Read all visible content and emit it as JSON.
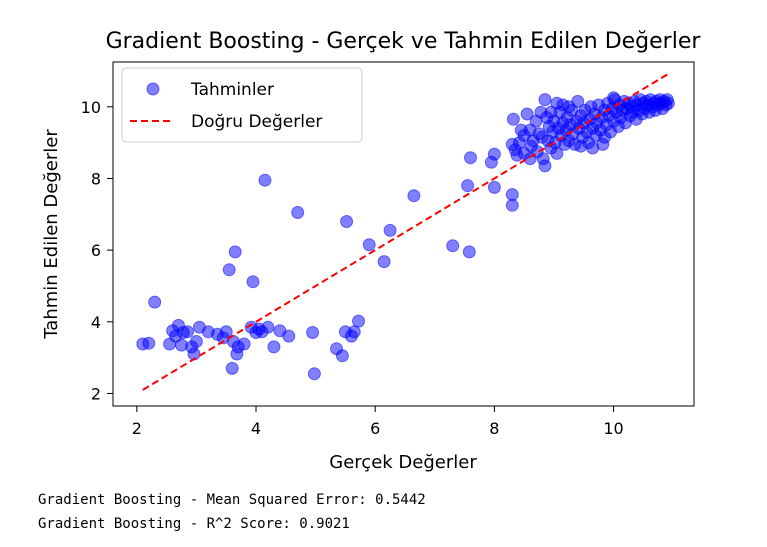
{
  "chart_data": {
    "type": "scatter",
    "title": "Gradient Boosting - Gerçek ve Tahmin Edilen Değerler",
    "xlabel": "Gerçek Değerler",
    "ylabel": "Tahmin Edilen Değerler",
    "xlim": [
      1.6,
      11.35
    ],
    "ylim": [
      1.65,
      11.25
    ],
    "xticks": [
      2,
      4,
      6,
      8,
      10
    ],
    "yticks": [
      2,
      4,
      6,
      8,
      10
    ],
    "grid": false,
    "legend": {
      "placement": "top-left",
      "scatter_label": "Tahminler",
      "line_label": "Doğru Değerler"
    },
    "colors": {
      "points": "#0000ff",
      "line": "#ff0000"
    },
    "ideal_line": {
      "x": [
        2.1,
        10.9
      ],
      "y": [
        2.1,
        10.9
      ]
    },
    "points": [
      [
        2.1,
        3.38
      ],
      [
        2.2,
        3.4
      ],
      [
        2.3,
        4.55
      ],
      [
        2.55,
        3.38
      ],
      [
        2.6,
        3.75
      ],
      [
        2.65,
        3.6
      ],
      [
        2.7,
        3.9
      ],
      [
        2.75,
        3.35
      ],
      [
        2.78,
        3.7
      ],
      [
        2.85,
        3.72
      ],
      [
        2.92,
        3.3
      ],
      [
        2.96,
        3.1
      ],
      [
        3.0,
        3.45
      ],
      [
        3.05,
        3.85
      ],
      [
        3.2,
        3.72
      ],
      [
        3.35,
        3.65
      ],
      [
        3.45,
        3.55
      ],
      [
        3.5,
        3.72
      ],
      [
        3.55,
        5.45
      ],
      [
        3.6,
        2.7
      ],
      [
        3.62,
        3.45
      ],
      [
        3.65,
        5.95
      ],
      [
        3.68,
        3.1
      ],
      [
        3.7,
        3.3
      ],
      [
        3.8,
        3.38
      ],
      [
        3.92,
        3.85
      ],
      [
        3.95,
        5.12
      ],
      [
        4.0,
        3.7
      ],
      [
        4.05,
        3.8
      ],
      [
        4.1,
        3.72
      ],
      [
        4.15,
        7.95
      ],
      [
        4.2,
        3.85
      ],
      [
        4.3,
        3.3
      ],
      [
        4.4,
        3.75
      ],
      [
        4.55,
        3.6
      ],
      [
        4.7,
        7.05
      ],
      [
        4.95,
        3.7
      ],
      [
        4.98,
        2.55
      ],
      [
        5.35,
        3.25
      ],
      [
        5.45,
        3.05
      ],
      [
        5.5,
        3.72
      ],
      [
        5.52,
        6.8
      ],
      [
        5.6,
        3.6
      ],
      [
        5.65,
        3.72
      ],
      [
        5.72,
        4.02
      ],
      [
        5.9,
        6.15
      ],
      [
        6.15,
        5.68
      ],
      [
        6.25,
        6.55
      ],
      [
        6.65,
        7.52
      ],
      [
        7.3,
        6.12
      ],
      [
        7.55,
        7.8
      ],
      [
        7.58,
        5.95
      ],
      [
        7.6,
        8.58
      ],
      [
        7.95,
        8.45
      ],
      [
        8.0,
        7.75
      ],
      [
        8.0,
        8.68
      ],
      [
        8.3,
        7.55
      ],
      [
        8.3,
        7.25
      ],
      [
        8.32,
        9.65
      ],
      [
        8.3,
        8.95
      ],
      [
        8.35,
        8.8
      ],
      [
        8.38,
        8.65
      ],
      [
        8.42,
        9.0
      ],
      [
        8.5,
        9.2
      ],
      [
        8.5,
        8.7
      ],
      [
        8.55,
        9.8
      ],
      [
        8.6,
        9.35
      ],
      [
        8.62,
        8.9
      ],
      [
        8.65,
        9.05
      ],
      [
        8.7,
        9.6
      ],
      [
        8.72,
        8.75
      ],
      [
        8.75,
        9.25
      ],
      [
        8.78,
        9.85
      ],
      [
        8.8,
        9.15
      ],
      [
        8.82,
        8.55
      ],
      [
        8.85,
        10.2
      ],
      [
        8.85,
        8.35
      ],
      [
        8.88,
        9.7
      ],
      [
        8.9,
        9.05
      ],
      [
        8.92,
        9.45
      ],
      [
        8.95,
        8.85
      ],
      [
        8.98,
        9.3
      ],
      [
        9.0,
        9.6
      ],
      [
        9.02,
        9.0
      ],
      [
        9.05,
        8.7
      ],
      [
        9.08,
        9.4
      ],
      [
        9.1,
        9.85
      ],
      [
        9.12,
        9.2
      ],
      [
        9.15,
        9.55
      ],
      [
        9.18,
        8.95
      ],
      [
        9.2,
        9.35
      ],
      [
        9.22,
        9.7
      ],
      [
        9.25,
        9.05
      ],
      [
        9.28,
        9.5
      ],
      [
        9.3,
        9.9
      ],
      [
        9.32,
        9.25
      ],
      [
        9.35,
        8.95
      ],
      [
        9.38,
        9.6
      ],
      [
        9.4,
        10.15
      ],
      [
        9.42,
        9.4
      ],
      [
        9.45,
        9.75
      ],
      [
        9.48,
        9.15
      ],
      [
        9.5,
        9.55
      ],
      [
        9.52,
        9.9
      ],
      [
        9.55,
        9.3
      ],
      [
        9.58,
        9.0
      ],
      [
        9.6,
        9.65
      ],
      [
        9.62,
        10.0
      ],
      [
        9.65,
        9.4
      ],
      [
        9.68,
        9.8
      ],
      [
        9.7,
        9.2
      ],
      [
        9.72,
        9.55
      ],
      [
        9.75,
        10.05
      ],
      [
        9.78,
        9.35
      ],
      [
        9.8,
        9.7
      ],
      [
        9.82,
        8.95
      ],
      [
        9.85,
        9.9
      ],
      [
        9.88,
        9.5
      ],
      [
        9.9,
        10.1
      ],
      [
        9.92,
        9.75
      ],
      [
        9.95,
        9.3
      ],
      [
        9.98,
        9.95
      ],
      [
        10.0,
        9.6
      ],
      [
        10.02,
        10.2
      ],
      [
        10.05,
        9.85
      ],
      [
        10.08,
        9.45
      ],
      [
        10.1,
        10.05
      ],
      [
        10.12,
        9.7
      ],
      [
        10.15,
        9.9
      ],
      [
        10.18,
        10.15
      ],
      [
        10.2,
        9.55
      ],
      [
        10.22,
        9.95
      ],
      [
        10.25,
        10.1
      ],
      [
        10.28,
        9.75
      ],
      [
        10.3,
        10.0
      ],
      [
        10.32,
        9.85
      ],
      [
        10.35,
        10.15
      ],
      [
        10.38,
        9.65
      ],
      [
        10.4,
        10.05
      ],
      [
        10.42,
        9.9
      ],
      [
        10.45,
        10.2
      ],
      [
        10.48,
        9.8
      ],
      [
        10.5,
        10.1
      ],
      [
        10.52,
        9.95
      ],
      [
        10.55,
        10.15
      ],
      [
        10.58,
        10.05
      ],
      [
        10.6,
        9.85
      ],
      [
        10.62,
        10.2
      ],
      [
        10.65,
        10.0
      ],
      [
        10.68,
        10.1
      ],
      [
        10.7,
        9.9
      ],
      [
        10.72,
        10.15
      ],
      [
        10.75,
        10.05
      ],
      [
        10.78,
        10.2
      ],
      [
        10.8,
        10.1
      ],
      [
        10.82,
        9.95
      ],
      [
        10.85,
        10.15
      ],
      [
        10.88,
        10.05
      ],
      [
        10.9,
        10.2
      ],
      [
        10.92,
        10.1
      ],
      [
        8.95,
        9.85
      ],
      [
        9.05,
        10.1
      ],
      [
        9.25,
        10.0
      ],
      [
        9.45,
        8.9
      ],
      [
        9.65,
        8.85
      ],
      [
        9.85,
        9.15
      ],
      [
        8.6,
        8.55
      ],
      [
        8.45,
        9.35
      ],
      [
        9.15,
        10.05
      ],
      [
        10.0,
        10.25
      ]
    ]
  },
  "output": {
    "line1": "Gradient Boosting - Mean Squared Error: 0.5442",
    "line2": "Gradient Boosting - R^2 Score: 0.9021"
  }
}
